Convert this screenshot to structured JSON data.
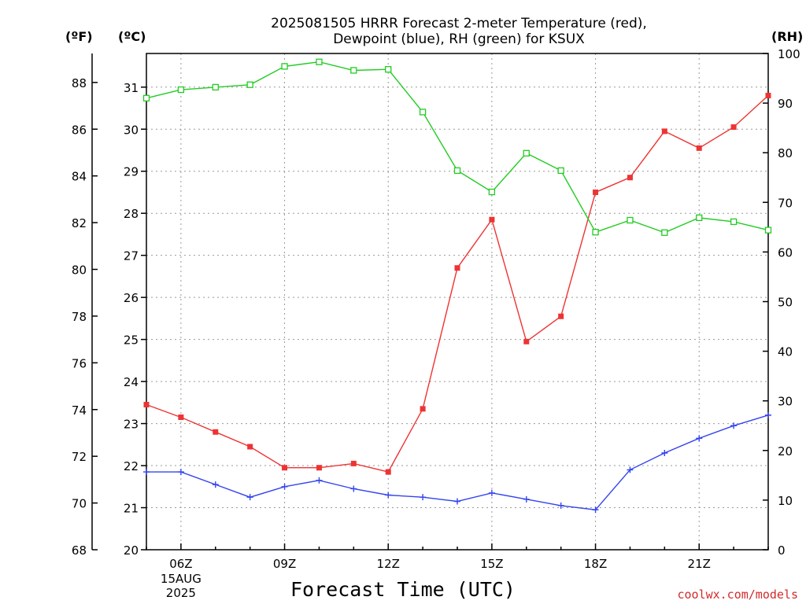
{
  "chart_data": {
    "type": "line",
    "title_lines": [
      "2025081505 HRRR Forecast 2-meter Temperature (red),",
      "Dewpoint (blue), RH (green) for KSUX"
    ],
    "xlabel": "Forecast Time (UTC)",
    "credit": "coolwx.com/models",
    "unit_labels": {
      "fahrenheit": "(ºF)",
      "celsius": "(ºC)",
      "rh": "(RH)"
    },
    "x_hours": [
      5,
      6,
      7,
      8,
      9,
      10,
      11,
      12,
      13,
      14,
      15,
      16,
      17,
      18,
      19,
      20,
      21,
      22,
      23
    ],
    "xlim": [
      5,
      23
    ],
    "x_ticks": [
      {
        "hour": 6,
        "label": "06Z",
        "sub": [
          "15AUG",
          "2025"
        ]
      },
      {
        "hour": 9,
        "label": "09Z",
        "sub": []
      },
      {
        "hour": 12,
        "label": "12Z",
        "sub": []
      },
      {
        "hour": 15,
        "label": "15Z",
        "sub": []
      },
      {
        "hour": 18,
        "label": "18Z",
        "sub": []
      },
      {
        "hour": 21,
        "label": "21Z",
        "sub": []
      }
    ],
    "celsius_axis": {
      "range": [
        20,
        31.8
      ],
      "ticks": [
        20,
        21,
        22,
        23,
        24,
        25,
        26,
        27,
        28,
        29,
        30,
        31
      ]
    },
    "fahrenheit_axis": {
      "range": [
        68,
        89.24
      ],
      "ticks": [
        68,
        70,
        72,
        74,
        76,
        78,
        80,
        82,
        84,
        86,
        88
      ]
    },
    "rh_axis": {
      "range": [
        0,
        100
      ],
      "ticks": [
        0,
        10,
        20,
        30,
        40,
        50,
        60,
        70,
        80,
        90,
        100
      ]
    },
    "grid": true,
    "colors": {
      "temperature": "#ee3333",
      "dewpoint": "#3344ee",
      "rh": "#22cc22"
    },
    "series": [
      {
        "name": "Temperature",
        "axis": "celsius",
        "marker": "filled-square",
        "values": [
          23.45,
          23.15,
          22.8,
          22.45,
          21.95,
          21.95,
          22.05,
          21.85,
          23.35,
          26.7,
          27.85,
          24.95,
          25.55,
          28.5,
          28.85,
          29.95,
          29.55,
          30.05,
          30.8
        ]
      },
      {
        "name": "Dewpoint",
        "axis": "celsius",
        "marker": "plus",
        "values": [
          21.85,
          21.85,
          21.55,
          21.25,
          21.5,
          21.65,
          21.45,
          21.3,
          21.25,
          21.15,
          21.35,
          21.2,
          21.05,
          20.95,
          21.9,
          22.3,
          22.65,
          22.95,
          23.2
        ]
      },
      {
        "name": "RH",
        "axis": "rh",
        "marker": "open-square",
        "values": [
          91,
          92.7,
          93.2,
          93.7,
          97.4,
          98.3,
          96.6,
          96.8,
          88.2,
          76.4,
          72.1,
          79.9,
          76.4,
          64,
          66.4,
          63.9,
          66.9,
          66.1,
          64.4
        ]
      }
    ]
  }
}
